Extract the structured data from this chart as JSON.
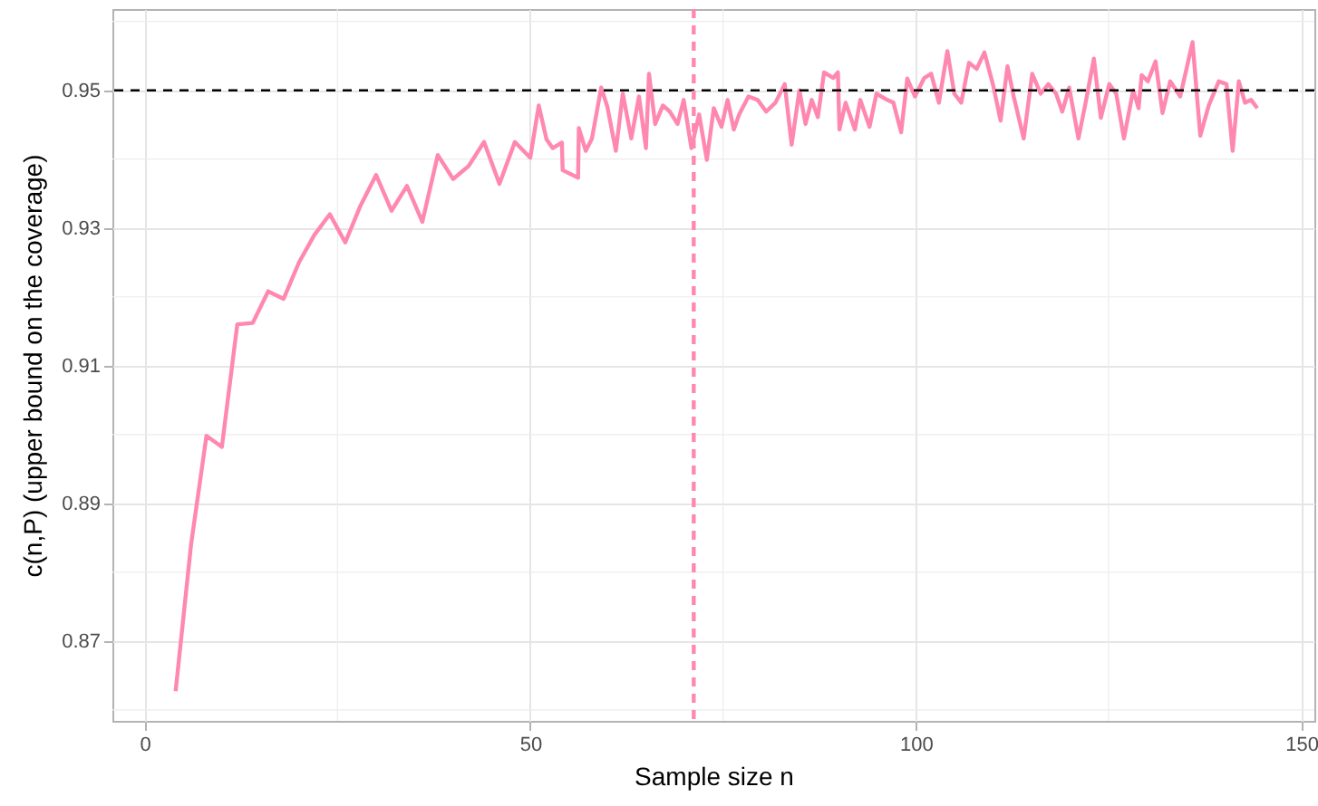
{
  "chart_data": {
    "type": "line",
    "xlabel": "Sample size n",
    "ylabel": "c(n,P) (upper bound on the coverage)",
    "x": [
      4,
      6,
      8,
      10,
      12,
      14,
      16,
      18,
      20,
      22,
      24,
      26,
      28,
      30,
      32,
      34,
      36,
      38,
      40,
      42,
      44,
      46,
      48,
      50,
      51.1,
      52.1,
      52.9,
      54.1,
      54.2,
      56.2,
      56.3,
      57.2,
      58,
      59.2,
      60,
      61.1,
      62,
      63.1,
      64.1,
      65,
      65.4,
      66.2,
      67.2,
      68.1,
      69.1,
      69.9,
      70.9,
      71.9,
      72.9,
      73.8,
      74.8,
      75.6,
      76.4,
      77.1,
      78.3,
      79.5,
      80.6,
      81.8,
      83,
      83.9,
      84.9,
      85.7,
      86.5,
      87.3,
      88.1,
      89.3,
      89.9,
      90.1,
      90.9,
      92.1,
      92.8,
      94,
      94.9,
      96.3,
      97.1,
      98.1,
      98.9,
      99.9,
      101.1,
      102,
      103,
      104.1,
      105,
      105.9,
      106.9,
      107.9,
      108.9,
      110,
      111,
      111.9,
      112.7,
      114,
      115.1,
      116.2,
      117.2,
      118.2,
      119,
      119.9,
      121.1,
      122.1,
      123.1,
      124,
      125.1,
      126,
      127,
      128.2,
      128.9,
      129.3,
      130.1,
      131.1,
      132,
      133,
      134.3,
      135.9,
      136.9,
      138,
      139.3,
      140.3,
      141.1,
      141.9,
      142.7,
      143.5,
      144.3
    ],
    "series": [
      {
        "color": "#ff88b0",
        "values": [
          0.8627,
          0.884,
          0.8998,
          0.8982,
          0.916,
          0.9162,
          0.9208,
          0.9197,
          0.925,
          0.929,
          0.932,
          0.9279,
          0.9333,
          0.9377,
          0.9325,
          0.9361,
          0.9309,
          0.9406,
          0.9371,
          0.939,
          0.9425,
          0.9364,
          0.9425,
          0.9402,
          0.9478,
          0.9429,
          0.9416,
          0.9424,
          0.9384,
          0.9373,
          0.9445,
          0.9412,
          0.943,
          0.9504,
          0.9476,
          0.9412,
          0.9495,
          0.943,
          0.9491,
          0.9416,
          0.9524,
          0.9451,
          0.9478,
          0.9469,
          0.9451,
          0.9486,
          0.9416,
          0.9465,
          0.9399,
          0.9474,
          0.9447,
          0.9486,
          0.9443,
          0.9465,
          0.9491,
          0.9486,
          0.9469,
          0.9482,
          0.9509,
          0.9421,
          0.95,
          0.9451,
          0.9486,
          0.9461,
          0.9526,
          0.9518,
          0.9526,
          0.9443,
          0.9482,
          0.9443,
          0.9486,
          0.9447,
          0.9495,
          0.9486,
          0.9482,
          0.9439,
          0.9517,
          0.9491,
          0.9518,
          0.9524,
          0.9482,
          0.9557,
          0.9495,
          0.9482,
          0.954,
          0.9531,
          0.9555,
          0.9509,
          0.9456,
          0.9535,
          0.9491,
          0.943,
          0.9524,
          0.9495,
          0.9509,
          0.9495,
          0.9469,
          0.9504,
          0.943,
          0.9486,
          0.9546,
          0.946,
          0.9509,
          0.9495,
          0.943,
          0.95,
          0.9474,
          0.9522,
          0.9513,
          0.9542,
          0.9467,
          0.9513,
          0.9491,
          0.957,
          0.9434,
          0.9478,
          0.9513,
          0.9509,
          0.9412,
          0.9513,
          0.9482,
          0.9486,
          0.9474
        ]
      }
    ],
    "xlim": [
      -4.2,
      151.7
    ],
    "ylim": [
      0.8584,
      0.9618
    ],
    "xticks": [
      0,
      {
        "value": 25,
        "label": null
      },
      50,
      {
        "value": 75,
        "label": null
      },
      100,
      {
        "value": 125,
        "label": null
      },
      150
    ],
    "yticks": [
      {
        "value": 0.86,
        "label": null
      },
      0.87,
      {
        "value": 0.88,
        "label": null
      },
      0.89,
      {
        "value": 0.9,
        "label": null
      },
      0.91,
      {
        "value": 0.92,
        "label": null
      },
      0.93,
      {
        "value": 0.94,
        "label": null
      },
      0.95,
      {
        "value": 0.96,
        "label": null
      }
    ],
    "grid": true,
    "line_style": "solid",
    "ref_lines": [
      {
        "axis": "y",
        "value": 0.95,
        "color": "#000000",
        "line_style": "dashed"
      },
      {
        "axis": "x",
        "value": 71.2,
        "color": "#ff88b0",
        "line_style": "dashed"
      }
    ]
  }
}
